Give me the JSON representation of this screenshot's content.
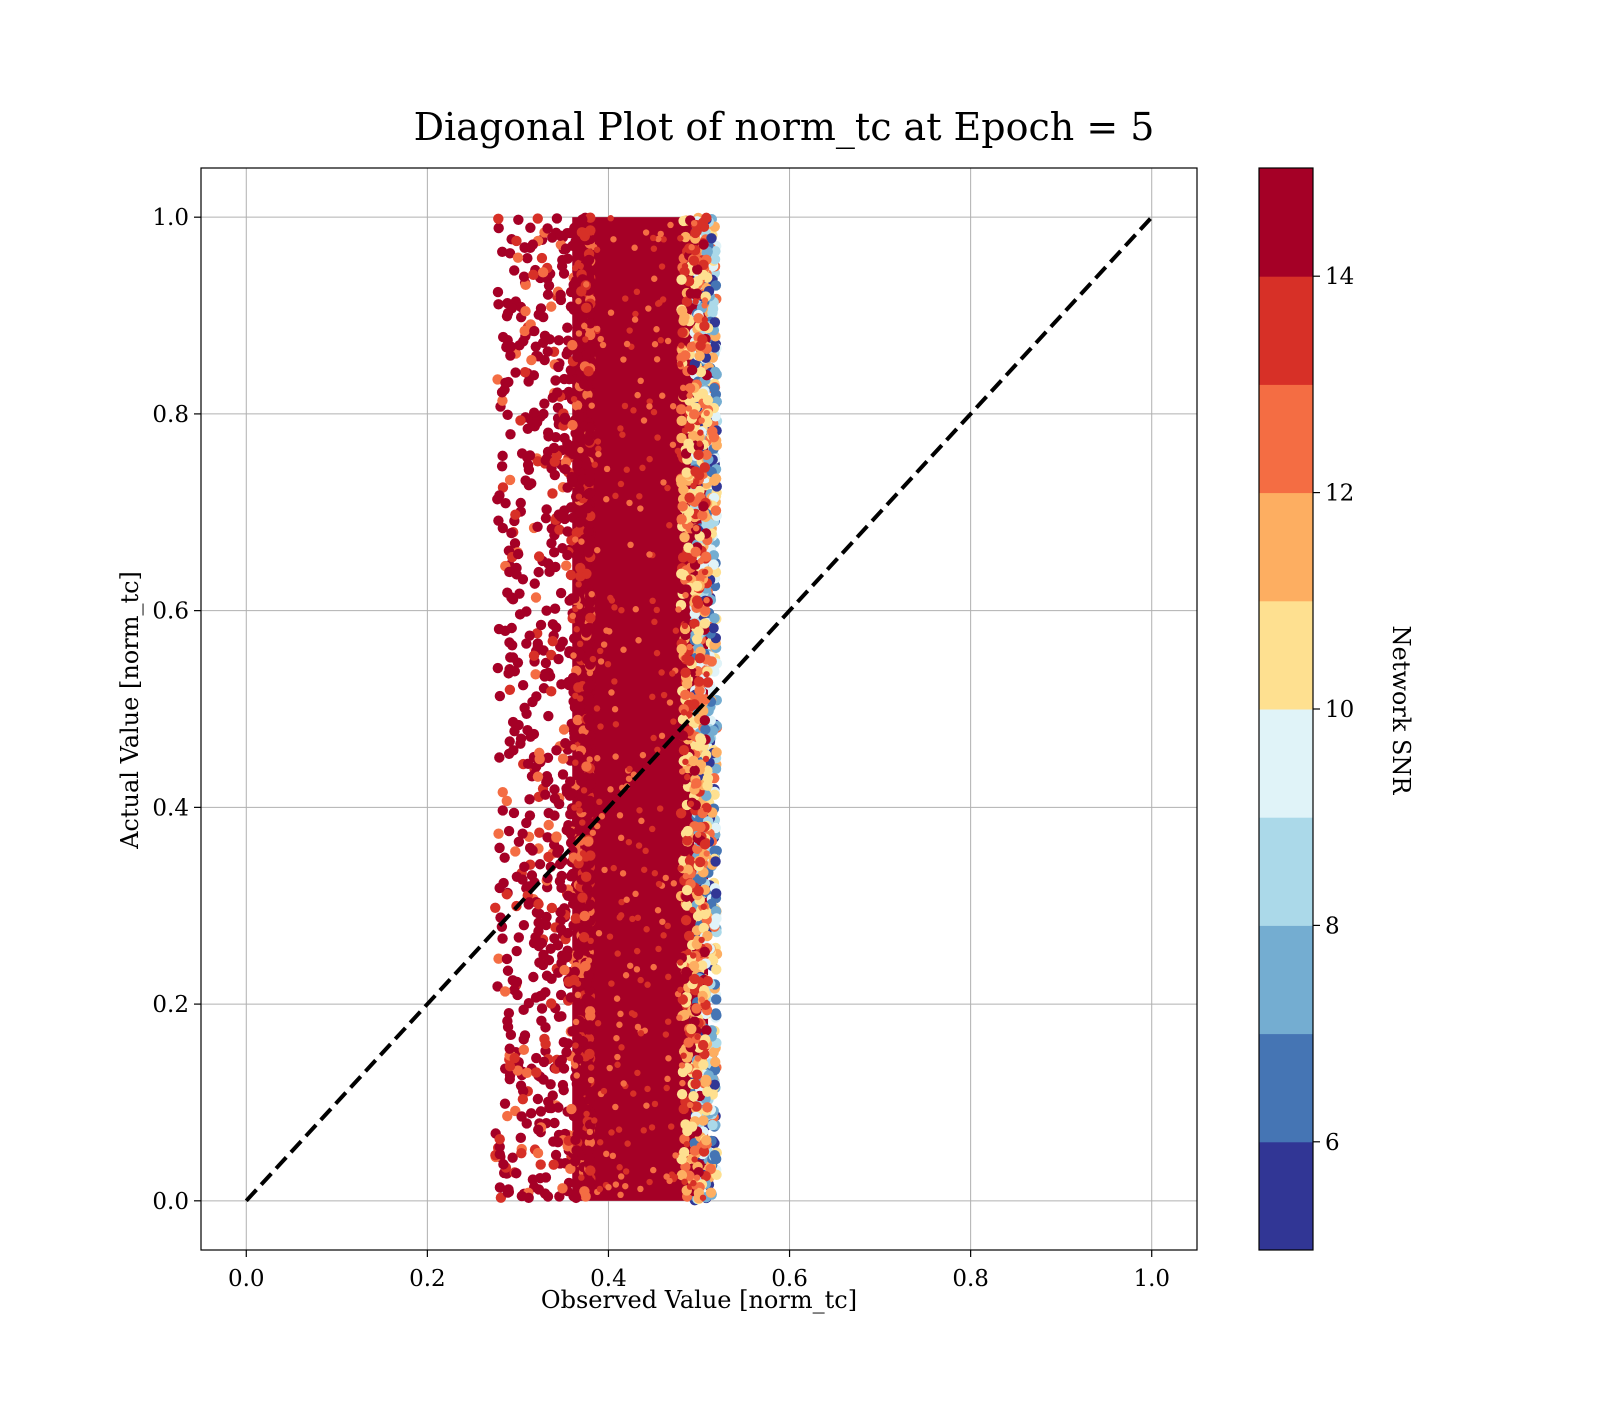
{
  "chart_data": {
    "type": "scatter",
    "title": "Diagonal Plot of norm_tc at Epoch = 5",
    "xlabel": "Observed Value [norm_tc]",
    "ylabel": "Actual Value [norm_tc]",
    "xlim": [
      -0.05,
      1.05
    ],
    "ylim": [
      -0.05,
      1.05
    ],
    "xticks": [
      "0.0",
      "0.2",
      "0.4",
      "0.6",
      "0.8",
      "1.0"
    ],
    "yticks": [
      "0.0",
      "0.2",
      "0.4",
      "0.6",
      "0.8",
      "1.0"
    ],
    "grid": true,
    "reference_line": {
      "x": [
        0.0,
        1.0
      ],
      "y": [
        0.0,
        1.0
      ],
      "style": "dashed",
      "color": "#000000"
    },
    "point_cloud": {
      "x_core_range": [
        0.36,
        0.51
      ],
      "x_outlier_min": 0.275,
      "x_max": 0.52,
      "y_range": [
        0.0,
        1.0
      ],
      "dominant_snr": 15
    },
    "colorbar": {
      "label": "Network SNR",
      "range": [
        5,
        15
      ],
      "ticks": [
        "6",
        "8",
        "10",
        "12",
        "14"
      ],
      "colors": [
        "#313695",
        "#4575b4",
        "#74add1",
        "#abd9e9",
        "#e0f3f8",
        "#fee090",
        "#fdae61",
        "#f46d43",
        "#d73027",
        "#a50026"
      ]
    }
  }
}
